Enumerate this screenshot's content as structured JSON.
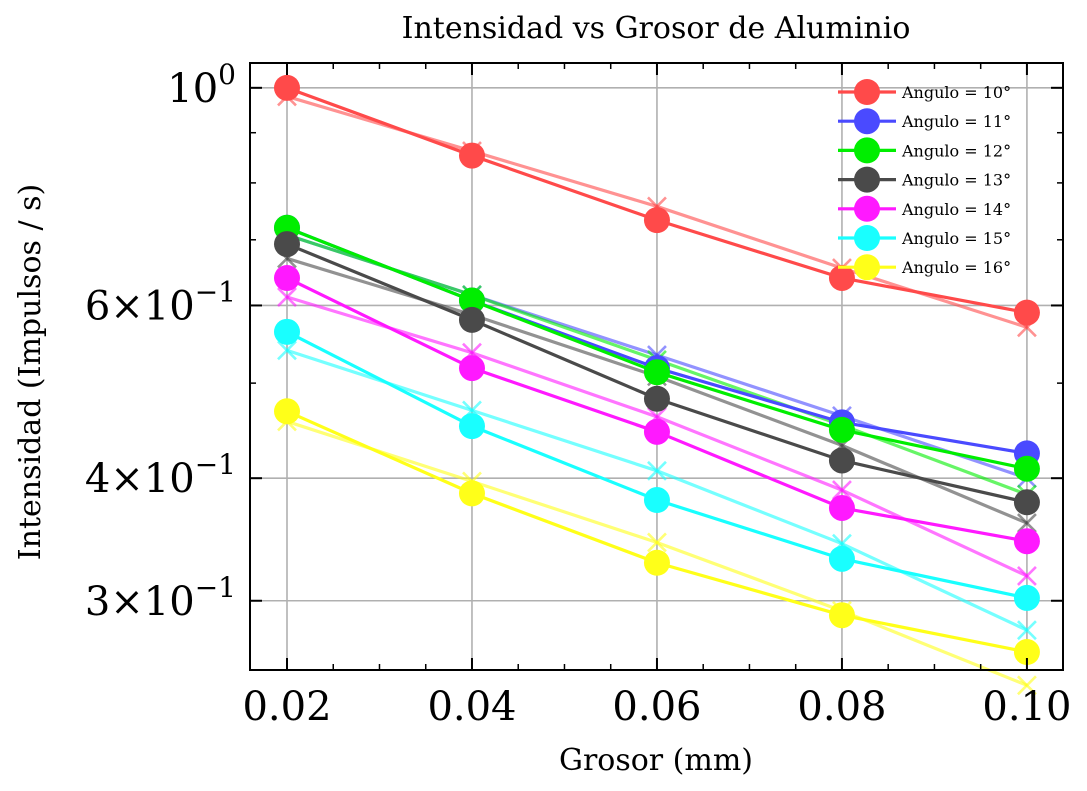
{
  "chart_data": {
    "type": "line",
    "title": "Intensidad vs Grosor de Aluminio",
    "xlabel": "Grosor (mm)",
    "ylabel": "Intensidad (Impulsos / s)",
    "x": [
      0.02,
      0.04,
      0.06,
      0.08,
      0.1
    ],
    "x_tick_labels": [
      "0.02",
      "0.04",
      "0.06",
      "0.08",
      "0.10"
    ],
    "xlim": [
      0.016,
      0.1039
    ],
    "y_scale": "log",
    "ylim": [
      0.255,
      1.06
    ],
    "y_ticks": [
      {
        "value": 1.0,
        "base": "10",
        "exp": "0"
      },
      {
        "value": 0.6,
        "base": "6×10",
        "exp": "−1"
      },
      {
        "value": 0.4,
        "base": "4×10",
        "exp": "−1"
      },
      {
        "value": 0.3,
        "base": "3×10",
        "exp": "−1"
      }
    ],
    "grid": true,
    "legend_position": "top-right",
    "series": [
      {
        "name": "Angulo = 10°",
        "color": "#ff4a4a",
        "values": [
          1.0,
          0.853,
          0.733,
          0.64,
          0.59
        ],
        "fit": [
          0.98,
          0.862,
          0.757,
          0.655,
          0.57
        ]
      },
      {
        "name": "Angulo = 11°",
        "color": "#4a4aff",
        "values": [
          0.72,
          0.607,
          0.518,
          0.456,
          0.424
        ],
        "fit": [
          0.708,
          0.615,
          0.534,
          0.463,
          0.4
        ]
      },
      {
        "name": "Angulo = 12°",
        "color": "#00ee00",
        "values": [
          0.72,
          0.607,
          0.513,
          0.448,
          0.409
        ],
        "fit": [
          0.708,
          0.615,
          0.528,
          0.453,
          0.385
        ]
      },
      {
        "name": "Angulo = 13°",
        "color": "#4a4a4a",
        "values": [
          0.693,
          0.58,
          0.482,
          0.417,
          0.378
        ],
        "fit": [
          0.67,
          0.587,
          0.508,
          0.432,
          0.36
        ]
      },
      {
        "name": "Angulo = 14°",
        "color": "#ff19ff",
        "values": [
          0.64,
          0.518,
          0.446,
          0.373,
          0.345
        ],
        "fit": [
          0.612,
          0.537,
          0.462,
          0.389,
          0.318
        ]
      },
      {
        "name": "Angulo = 15°",
        "color": "#19ffff",
        "values": [
          0.564,
          0.452,
          0.38,
          0.331,
          0.302
        ],
        "fit": [
          0.54,
          0.469,
          0.407,
          0.343,
          0.28
        ]
      },
      {
        "name": "Angulo = 16°",
        "color": "#ffff19",
        "values": [
          0.468,
          0.386,
          0.328,
          0.29,
          0.266
        ],
        "fit": [
          0.457,
          0.397,
          0.344,
          0.293,
          0.246
        ]
      }
    ]
  }
}
